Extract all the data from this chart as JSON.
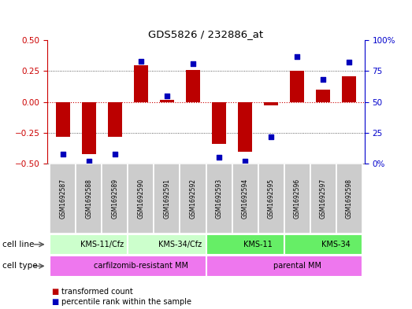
{
  "title": "GDS5826 / 232886_at",
  "samples": [
    "GSM1692587",
    "GSM1692588",
    "GSM1692589",
    "GSM1692590",
    "GSM1692591",
    "GSM1692592",
    "GSM1692593",
    "GSM1692594",
    "GSM1692595",
    "GSM1692596",
    "GSM1692597",
    "GSM1692598"
  ],
  "transformed_count": [
    -0.28,
    -0.42,
    -0.28,
    0.3,
    0.02,
    0.26,
    -0.34,
    -0.4,
    -0.025,
    0.25,
    0.1,
    0.21
  ],
  "percentile_rank": [
    8,
    2,
    8,
    83,
    55,
    81,
    5,
    2,
    22,
    87,
    68,
    82
  ],
  "ylim_left": [
    -0.5,
    0.5
  ],
  "ylim_right": [
    0,
    100
  ],
  "yticks_left": [
    -0.5,
    -0.25,
    0,
    0.25,
    0.5
  ],
  "yticks_right": [
    0,
    25,
    50,
    75,
    100
  ],
  "ytick_right_labels": [
    "0%",
    "25",
    "50",
    "75",
    "100%"
  ],
  "cell_line_groups": [
    {
      "label": "KMS-11/Cfz",
      "start": 0,
      "end": 3,
      "color": "#ccffcc"
    },
    {
      "label": "KMS-34/Cfz",
      "start": 3,
      "end": 6,
      "color": "#ccffcc"
    },
    {
      "label": "KMS-11",
      "start": 6,
      "end": 9,
      "color": "#66ee66"
    },
    {
      "label": "KMS-34",
      "start": 9,
      "end": 12,
      "color": "#66ee66"
    }
  ],
  "cell_type_groups": [
    {
      "label": "carfilzomib-resistant MM",
      "start": 0,
      "end": 6,
      "color": "#ee77ee"
    },
    {
      "label": "parental MM",
      "start": 6,
      "end": 12,
      "color": "#ee77ee"
    }
  ],
  "bar_color": "#bb0000",
  "dot_color": "#0000bb",
  "grid_color": "#333333",
  "hline_color": "#cc0000",
  "sample_box_color": "#cccccc",
  "cell_line_label": "cell line",
  "cell_type_label": "cell type",
  "legend_transformed": "transformed count",
  "legend_percentile": "percentile rank within the sample",
  "left_tick_color": "#cc0000",
  "right_tick_color": "#0000cc"
}
